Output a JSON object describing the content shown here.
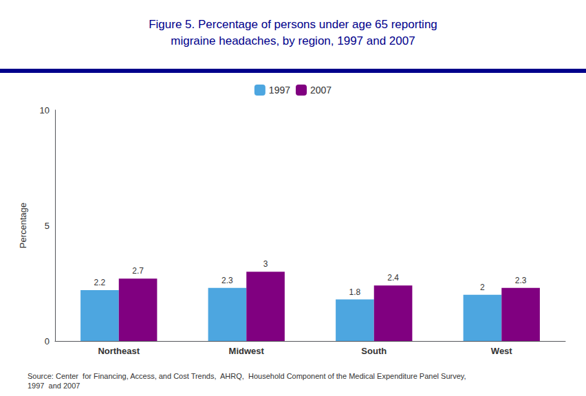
{
  "chart_data": {
    "type": "bar",
    "title": "Figure 5. Percentage of persons under age 65 reporting\nmigraine headaches, by region, 1997 and 2007",
    "categories": [
      "Northeast",
      "Midwest",
      "South",
      "West"
    ],
    "series": [
      {
        "name": "1997",
        "color": "#4da6e0",
        "values": [
          2.2,
          2.3,
          1.8,
          2.0
        ]
      },
      {
        "name": "2007",
        "color": "#800080",
        "values": [
          2.7,
          3.0,
          2.4,
          2.3
        ]
      }
    ],
    "ylabel": "Percentage",
    "ylim": [
      0,
      10
    ],
    "yticks": [
      0,
      5,
      10
    ],
    "grid": false,
    "legend": "top",
    "data_labels": true,
    "annotations": [
      "Source: Center  for Financing, Access, and Cost Trends,  AHRQ,  Household Component of the Medical Expenditure Panel Survey,\n1997  and 2007"
    ]
  }
}
